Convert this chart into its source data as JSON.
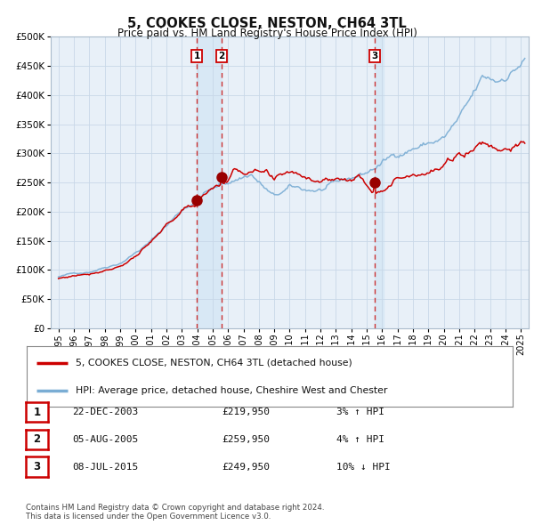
{
  "title": "5, COOKES CLOSE, NESTON, CH64 3TL",
  "subtitle": "Price paid vs. HM Land Registry's House Price Index (HPI)",
  "legend_line1": "5, COOKES CLOSE, NESTON, CH64 3TL (detached house)",
  "legend_line2": "HPI: Average price, detached house, Cheshire West and Chester",
  "transactions": [
    {
      "label": "1",
      "date": "2003-12-22",
      "price": 219950,
      "pct": "3%",
      "dir": "↑",
      "x_year": 2003.97
    },
    {
      "label": "2",
      "date": "2005-08-05",
      "price": 259950,
      "pct": "4%",
      "dir": "↑",
      "x_year": 2005.59
    },
    {
      "label": "3",
      "date": "2015-07-08",
      "price": 249950,
      "pct": "10%",
      "dir": "↓",
      "x_year": 2015.52
    }
  ],
  "table_rows": [
    {
      "num": "1",
      "date": "22-DEC-2003",
      "price": "£219,950",
      "pct": "3% ↑ HPI"
    },
    {
      "num": "2",
      "date": "05-AUG-2005",
      "price": "£259,950",
      "pct": "4% ↑ HPI"
    },
    {
      "num": "3",
      "date": "08-JUL-2015",
      "price": "£249,950",
      "pct": "10% ↓ HPI"
    }
  ],
  "footer": "Contains HM Land Registry data © Crown copyright and database right 2024.\nThis data is licensed under the Open Government Licence v3.0.",
  "ylim": [
    0,
    500000
  ],
  "yticks": [
    0,
    50000,
    100000,
    150000,
    200000,
    250000,
    300000,
    350000,
    400000,
    450000,
    500000
  ],
  "xlim_start": 1994.5,
  "xlim_end": 2025.5,
  "line_color_red": "#cc0000",
  "line_color_blue": "#7aadd4",
  "dot_color": "#990000",
  "vline_color": "#cc3333",
  "shade_color": "#d8e8f5",
  "grid_color": "#c8d8e8",
  "plot_bg": "#e8f0f8"
}
